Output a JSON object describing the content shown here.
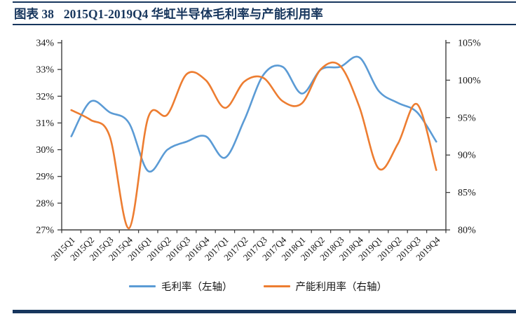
{
  "header": {
    "label": "图表 38",
    "title": "2015Q1-2019Q4 华虹半导体毛利率与产能利用率"
  },
  "colors": {
    "accent": "#17365D",
    "blue": "#5B9BD5",
    "orange": "#ED7D31",
    "axis": "#3F3F3F",
    "text": "#141414"
  },
  "chart_data": {
    "type": "line",
    "title": "图表 38 2015Q1-2019Q4 华虹半导体毛利率与产能利用率",
    "smooth": true,
    "grid": false,
    "legend_position": "bottom",
    "categories": [
      "2015Q1",
      "2015Q2",
      "2015Q3",
      "2015Q4",
      "2016Q1",
      "2016Q2",
      "2016Q3",
      "2016Q4",
      "2017Q1",
      "2017Q2",
      "2017Q3",
      "2017Q4",
      "2018Q1",
      "2018Q2",
      "2018Q3",
      "2018Q4",
      "2019Q1",
      "2019Q2",
      "2019Q3",
      "2019Q4"
    ],
    "series": [
      {
        "id": "gross-margin-line",
        "name": "毛利率（左轴）",
        "axis": "left",
        "color": "#5B9BD5",
        "values": [
          30.5,
          31.8,
          31.4,
          31.0,
          29.2,
          30.0,
          30.3,
          30.5,
          29.7,
          31.1,
          32.8,
          33.1,
          32.1,
          33.0,
          33.1,
          33.45,
          32.2,
          31.75,
          31.4,
          30.3
        ]
      },
      {
        "id": "utilization-line",
        "name": "产能利用率（右轴）",
        "axis": "right",
        "color": "#ED7D31",
        "values": [
          96.0,
          94.7,
          92.5,
          80.2,
          95.0,
          95.4,
          100.8,
          100.0,
          96.3,
          99.8,
          100.3,
          97.2,
          96.9,
          101.5,
          101.9,
          96.4,
          88.2,
          91.5,
          96.8,
          88.0
        ]
      }
    ],
    "axes": {
      "left": {
        "min": 27,
        "max": 34,
        "step": 1,
        "suffix": "%"
      },
      "right": {
        "min": 80,
        "max": 105,
        "step": 5,
        "suffix": "%"
      }
    }
  }
}
